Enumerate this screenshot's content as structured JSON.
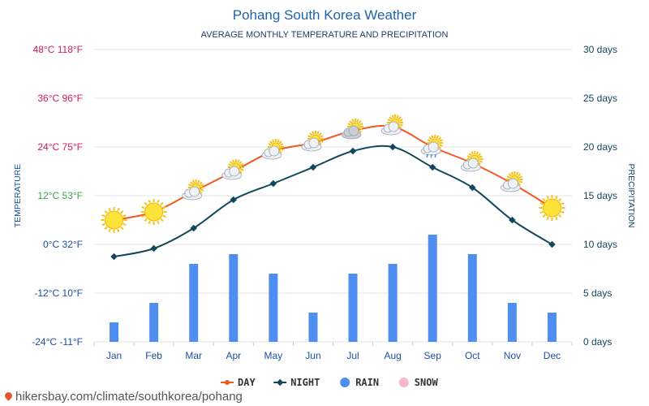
{
  "chart_data": {
    "type": "line",
    "title": "Pohang South Korea Weather",
    "subtitle": "AVERAGE MONTHLY TEMPERATURE AND PRECIPITATION",
    "ylabel_left": "TEMPERATURE",
    "ylabel_right": "PRECIPITATION",
    "categories": [
      "Jan",
      "Feb",
      "Mar",
      "Apr",
      "May",
      "Jun",
      "Jul",
      "Aug",
      "Sep",
      "Oct",
      "Nov",
      "Dec"
    ],
    "y_left_ticks": [
      {
        "value": 48,
        "label": "48°C 118°F",
        "color": "#d81b60"
      },
      {
        "value": 36,
        "label": "36°C 96°F",
        "color": "#d81b60"
      },
      {
        "value": 24,
        "label": "24°C 75°F",
        "color": "#d81b60"
      },
      {
        "value": 12,
        "label": "12°C 53°F",
        "color": "#43a047"
      },
      {
        "value": 0,
        "label": "0°C 32°F",
        "color": "#1e50a0"
      },
      {
        "value": -12,
        "label": "-12°C 10°F",
        "color": "#1e50a0"
      },
      {
        "value": -24,
        "label": "-24°C -11°F",
        "color": "#1e50a0"
      }
    ],
    "y_right_ticks": [
      {
        "value": 30,
        "label": "30 days"
      },
      {
        "value": 25,
        "label": "25 days"
      },
      {
        "value": 20,
        "label": "20 days"
      },
      {
        "value": 15,
        "label": "15 days"
      },
      {
        "value": 10,
        "label": "10 days"
      },
      {
        "value": 5,
        "label": "5 days"
      },
      {
        "value": 0,
        "label": "0 days"
      }
    ],
    "ylim_left": [
      -24,
      48
    ],
    "ylim_right": [
      0,
      30
    ],
    "series": [
      {
        "name": "DAY",
        "type": "line",
        "axis": "left",
        "color": "#f05a22",
        "values": [
          6,
          8,
          13,
          18,
          23,
          25,
          28,
          29,
          24,
          20,
          15,
          9
        ]
      },
      {
        "name": "NIGHT",
        "type": "line",
        "axis": "left",
        "color": "#12475e",
        "values": [
          -3,
          -1,
          4,
          11,
          15,
          19,
          23,
          24,
          19,
          14,
          6,
          0
        ]
      },
      {
        "name": "RAIN",
        "type": "bar",
        "axis": "right",
        "color": "#4d8ef0",
        "values": [
          2,
          4,
          8,
          9,
          7,
          3,
          7,
          8,
          11,
          9,
          4,
          3
        ]
      },
      {
        "name": "SNOW",
        "type": "bar",
        "axis": "right",
        "color": "#f7b6c9",
        "values": [
          0,
          0,
          0,
          0,
          0,
          0,
          0,
          0,
          0,
          0,
          0,
          0
        ]
      }
    ],
    "weather_icons": [
      "sun-icon",
      "sun-icon",
      "partly-cloudy-icon",
      "partly-cloudy-icon",
      "partly-cloudy-icon",
      "partly-cloudy-icon",
      "cloudy-sun-icon",
      "partly-cloudy-icon",
      "rain-cloud-sun-icon",
      "partly-cloudy-icon",
      "partly-cloudy-icon",
      "sun-icon"
    ],
    "grid": true,
    "legend_position": "bottom-center"
  },
  "footer": {
    "source": "hikersbay.com/climate/southkorea/pohang"
  }
}
